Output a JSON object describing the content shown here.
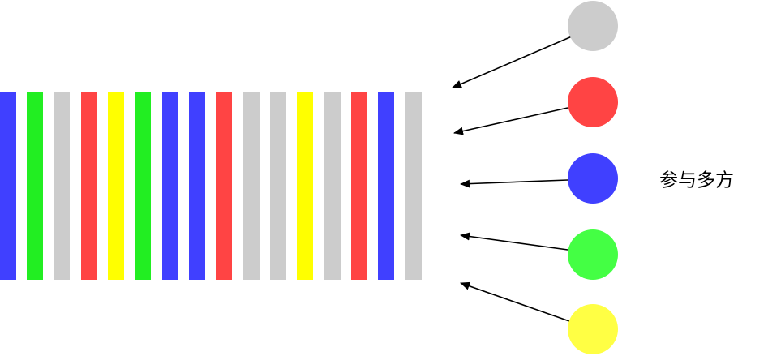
{
  "label": "参与多方"
}
